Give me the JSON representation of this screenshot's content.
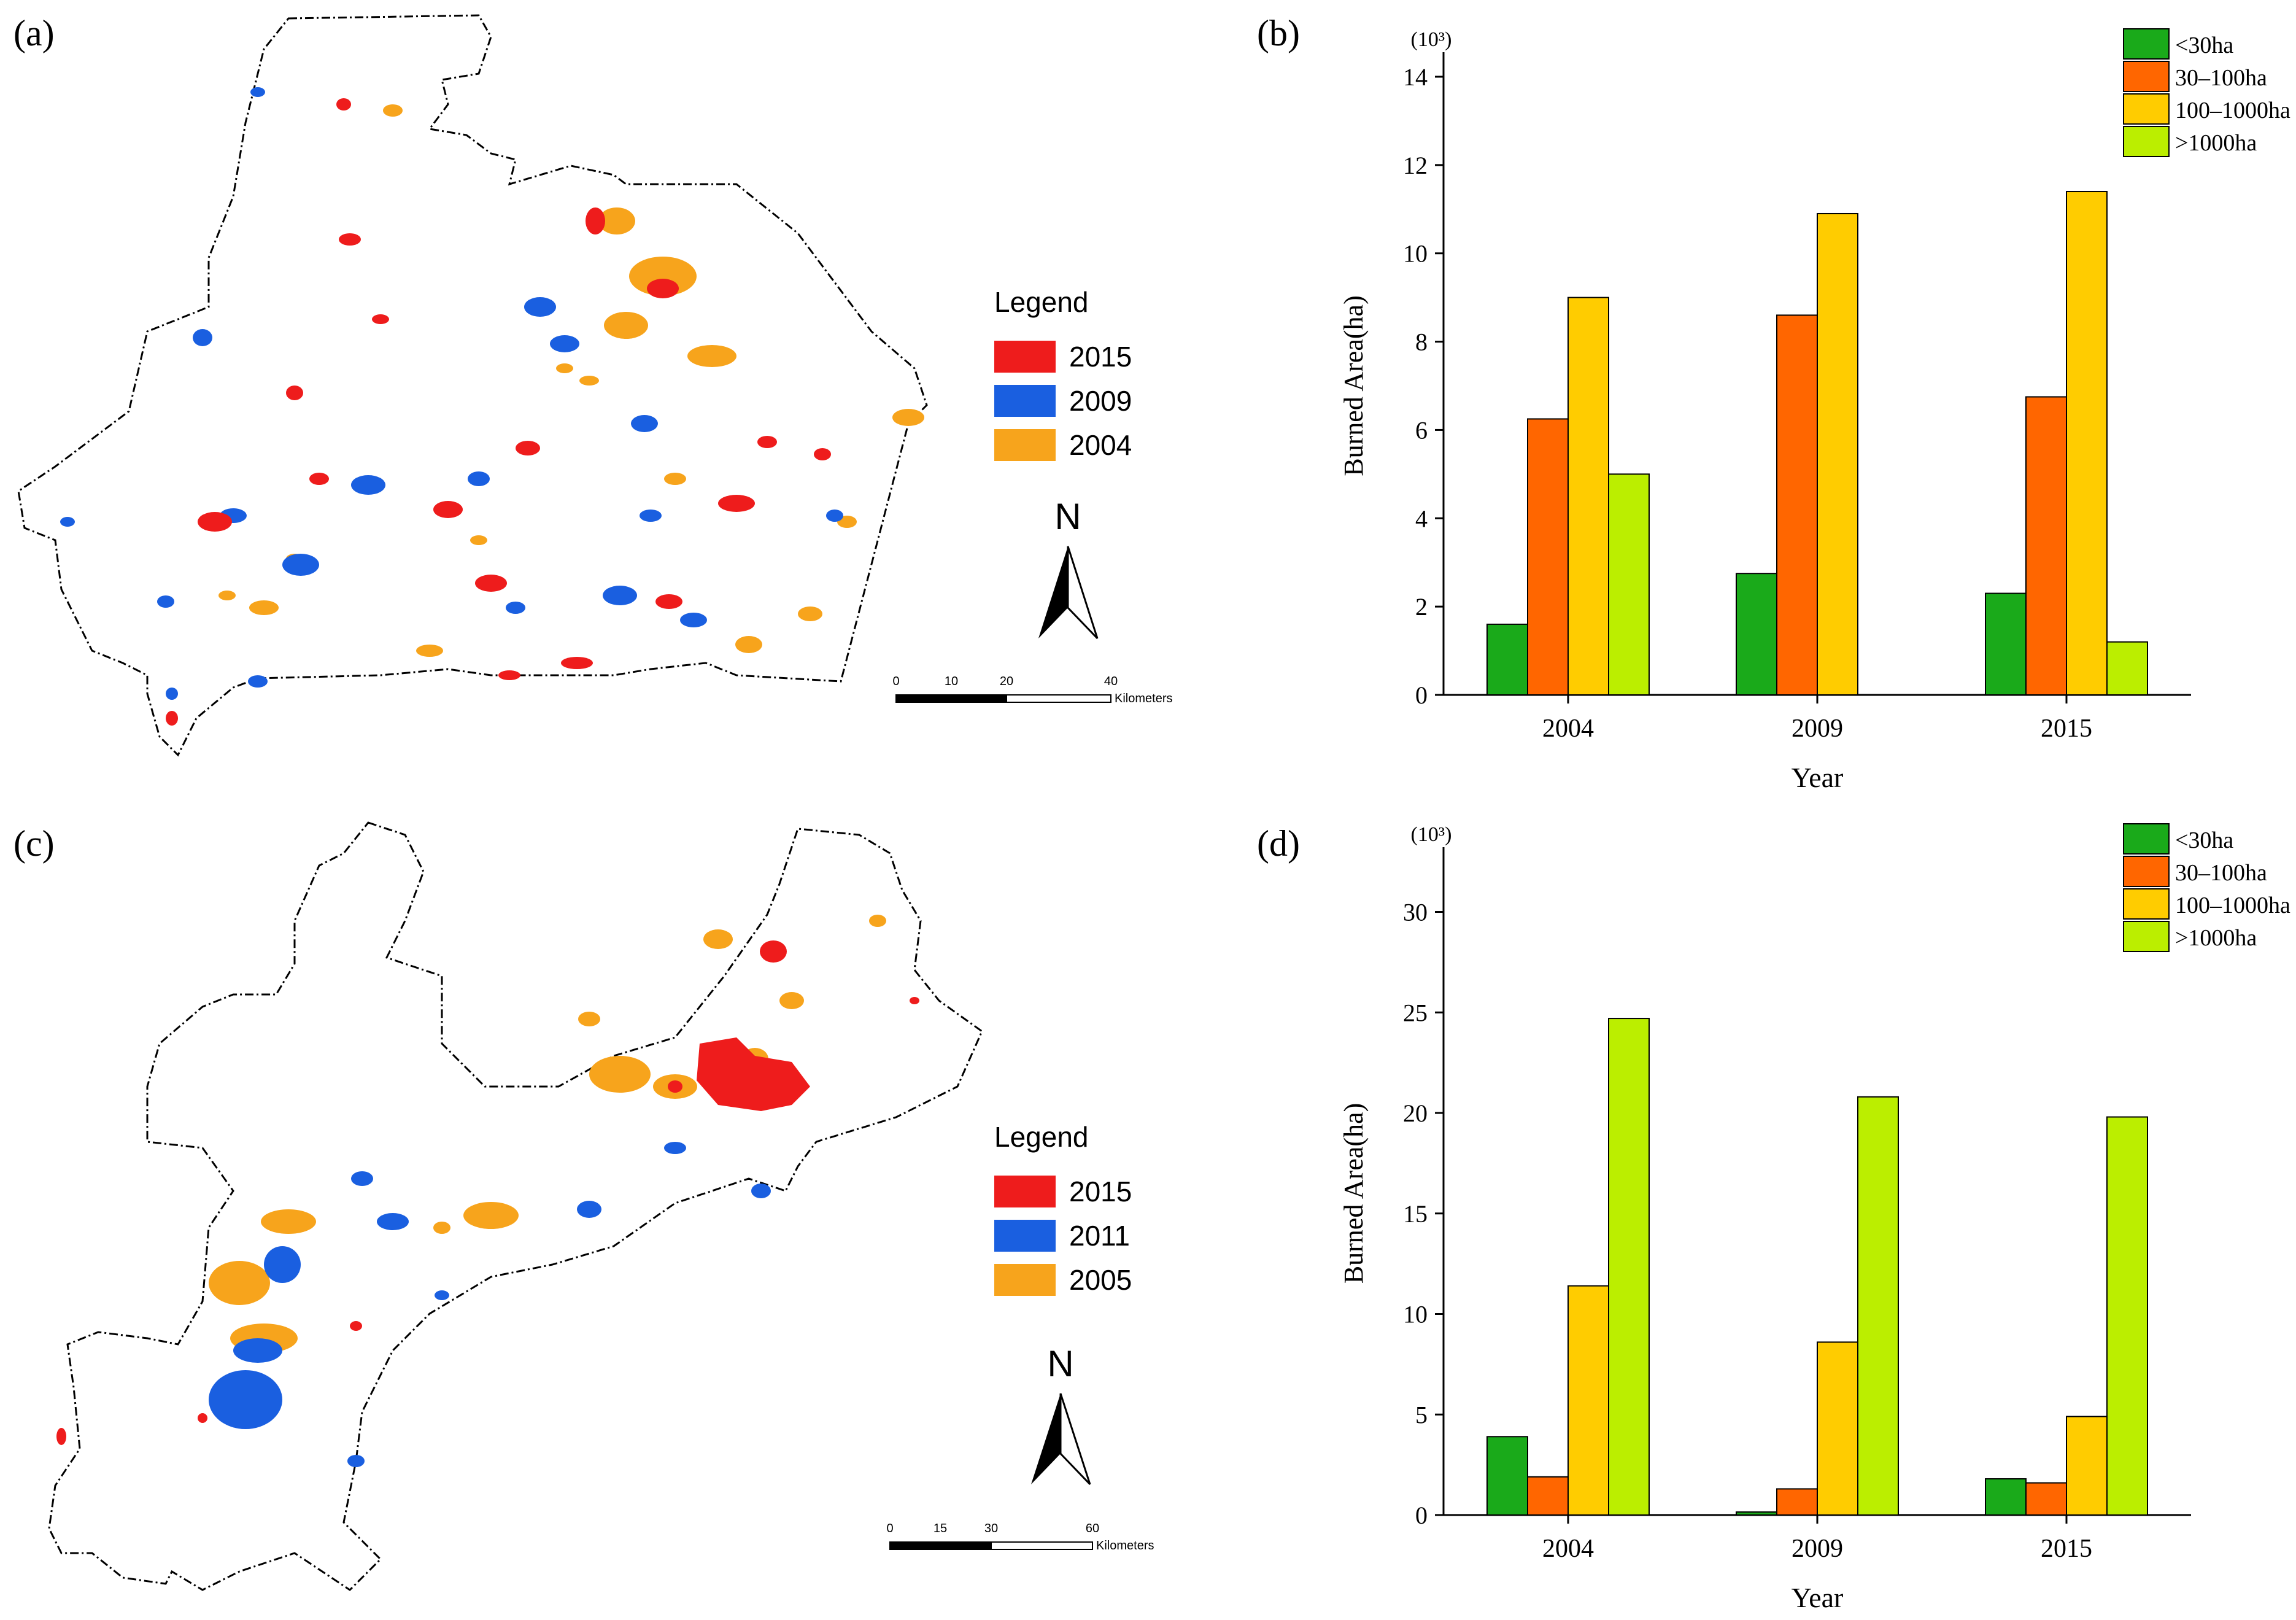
{
  "panels": {
    "a": {
      "label": "(a)"
    },
    "b": {
      "label": "(b)"
    },
    "c": {
      "label": "(c)"
    },
    "d": {
      "label": "(d)"
    }
  },
  "map_a": {
    "legend_title": "Legend",
    "legend": [
      {
        "label": "2015",
        "color": "#ee1c1c"
      },
      {
        "label": "2009",
        "color": "#1a5fe0"
      },
      {
        "label": "2004",
        "color": "#f7a41c"
      }
    ],
    "north": "N",
    "scale_ticks": [
      "0",
      "10",
      "20",
      "40"
    ],
    "scale_unit": "Kilometers"
  },
  "map_c": {
    "legend_title": "Legend",
    "legend": [
      {
        "label": "2015",
        "color": "#ee1c1c"
      },
      {
        "label": "2011",
        "color": "#1a5fe0"
      },
      {
        "label": "2005",
        "color": "#f7a41c"
      }
    ],
    "north": "N",
    "scale_ticks": [
      "0",
      "15",
      "30",
      "60"
    ],
    "scale_unit": "Kilometers"
  },
  "chart_data": [
    {
      "panel": "b",
      "type": "bar",
      "categories": [
        "2004",
        "2009",
        "2015"
      ],
      "series": [
        {
          "name": "<30ha",
          "color": "#1aaa1a",
          "values": [
            1.6,
            2.75,
            2.3
          ]
        },
        {
          "name": "30–100ha",
          "color": "#ff6600",
          "values": [
            6.25,
            8.6,
            6.75
          ]
        },
        {
          "name": "100–1000ha",
          "color": "#ffcc00",
          "values": [
            9.0,
            10.9,
            11.4
          ]
        },
        {
          "name": ">1000ha",
          "color": "#bbee00",
          "values": [
            5.0,
            0,
            1.2
          ]
        }
      ],
      "xlabel": "Year",
      "ylabel": "Burned Area(ha)",
      "multiplier": "(10³)",
      "ylim": [
        0,
        14
      ],
      "yticks": [
        "0",
        "2",
        "4",
        "6",
        "8",
        "10",
        "12",
        "14"
      ]
    },
    {
      "panel": "d",
      "type": "bar",
      "categories": [
        "2004",
        "2009",
        "2015"
      ],
      "series": [
        {
          "name": "<30ha",
          "color": "#1aaa1a",
          "values": [
            3.9,
            0.15,
            1.8
          ]
        },
        {
          "name": "30–100ha",
          "color": "#ff6600",
          "values": [
            1.9,
            1.3,
            1.6
          ]
        },
        {
          "name": "100–1000ha",
          "color": "#ffcc00",
          "values": [
            11.4,
            8.6,
            4.9
          ]
        },
        {
          "name": ">1000ha",
          "color": "#bbee00",
          "values": [
            24.7,
            20.8,
            19.8
          ]
        }
      ],
      "xlabel": "Year",
      "ylabel": "Burned Area(ha)",
      "multiplier": "(10³)",
      "ylim": [
        0,
        32
      ],
      "yticks": [
        "0",
        "5",
        "10",
        "15",
        "20",
        "25",
        "30"
      ]
    }
  ]
}
